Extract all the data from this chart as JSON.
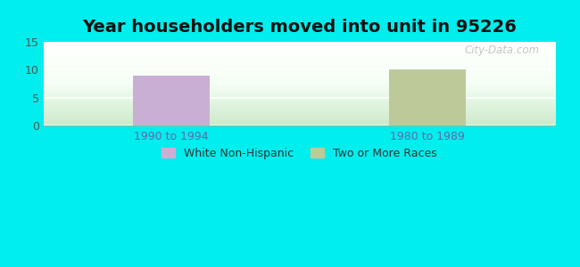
{
  "title": "Year householders moved into unit in 95226",
  "categories": [
    "1990 to 1994",
    "1980 to 1989"
  ],
  "series": [
    {
      "label": "White Non-Hispanic",
      "color": "#c9afd4",
      "values": [
        9,
        0
      ]
    },
    {
      "label": "Two or More Races",
      "color": "#bec99a",
      "values": [
        0,
        10
      ]
    }
  ],
  "ylim": [
    0,
    15
  ],
  "yticks": [
    0,
    5,
    10,
    15
  ],
  "background_color": "#00eeee",
  "title_fontsize": 14,
  "tick_fontsize": 9,
  "legend_fontsize": 9,
  "watermark": "City-Data.com",
  "bar_width": 0.3
}
